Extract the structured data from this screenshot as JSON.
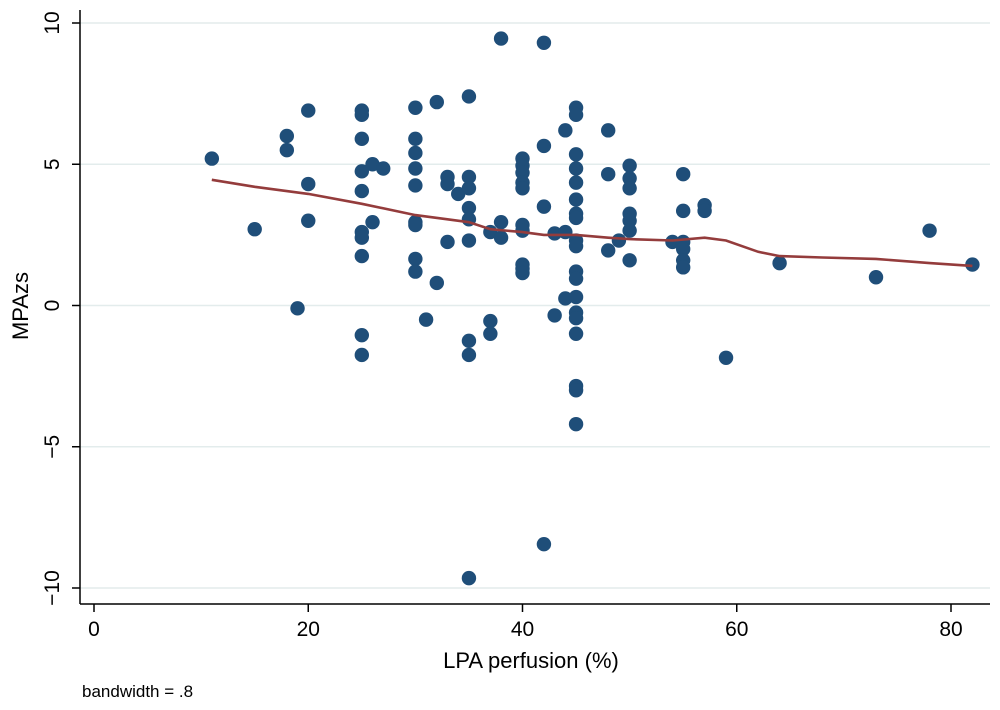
{
  "chart_data": {
    "type": "scatter",
    "title": "",
    "xlabel": "LPA perfusion (%)",
    "ylabel": "MPAzs",
    "xlim": [
      0,
      83
    ],
    "ylim": [
      -10.5,
      10
    ],
    "xticks": [
      0,
      20,
      40,
      60,
      80
    ],
    "yticks": [
      -10,
      -5,
      0,
      5,
      10
    ],
    "ytick_labels": [
      "−10",
      "−5",
      "0",
      "5",
      "10"
    ],
    "grid": "horizontal",
    "colors": {
      "points": "#1f4e79",
      "line": "#943c3c",
      "grid": "#e3ecec"
    },
    "points": [
      [
        11,
        5.2
      ],
      [
        15,
        2.7
      ],
      [
        18,
        6.0
      ],
      [
        18,
        5.5
      ],
      [
        19,
        -0.1
      ],
      [
        20,
        6.9
      ],
      [
        20,
        4.3
      ],
      [
        20,
        3.0
      ],
      [
        25,
        6.9
      ],
      [
        25,
        6.75
      ],
      [
        25,
        5.9
      ],
      [
        25,
        4.75
      ],
      [
        25,
        4.05
      ],
      [
        25,
        2.6
      ],
      [
        25,
        2.4
      ],
      [
        25,
        1.75
      ],
      [
        25,
        -1.05
      ],
      [
        25,
        -1.75
      ],
      [
        26,
        5.0
      ],
      [
        26,
        2.95
      ],
      [
        27,
        4.85
      ],
      [
        30,
        7.0
      ],
      [
        30,
        5.9
      ],
      [
        30,
        5.4
      ],
      [
        30,
        4.85
      ],
      [
        30,
        4.25
      ],
      [
        30,
        2.95
      ],
      [
        30,
        2.85
      ],
      [
        30,
        1.65
      ],
      [
        30,
        1.2
      ],
      [
        31,
        -0.5
      ],
      [
        32,
        7.2
      ],
      [
        32,
        0.8
      ],
      [
        33,
        4.55
      ],
      [
        33,
        4.3
      ],
      [
        33,
        2.25
      ],
      [
        34,
        3.95
      ],
      [
        35,
        7.4
      ],
      [
        35,
        4.55
      ],
      [
        35,
        4.15
      ],
      [
        35,
        3.45
      ],
      [
        35,
        3.05
      ],
      [
        35,
        2.3
      ],
      [
        35,
        -1.25
      ],
      [
        35,
        -1.75
      ],
      [
        35,
        -9.65
      ],
      [
        37,
        2.6
      ],
      [
        37,
        -0.55
      ],
      [
        37,
        -1.0
      ],
      [
        38,
        9.45
      ],
      [
        38,
        2.95
      ],
      [
        38,
        2.4
      ],
      [
        40,
        5.2
      ],
      [
        40,
        4.95
      ],
      [
        40,
        4.7
      ],
      [
        40,
        4.35
      ],
      [
        40,
        4.15
      ],
      [
        40,
        2.85
      ],
      [
        40,
        2.65
      ],
      [
        40,
        1.45
      ],
      [
        40,
        1.3
      ],
      [
        40,
        1.15
      ],
      [
        42,
        9.3
      ],
      [
        42,
        5.65
      ],
      [
        42,
        3.5
      ],
      [
        42,
        -8.45
      ],
      [
        43,
        2.55
      ],
      [
        43,
        -0.35
      ],
      [
        44,
        6.2
      ],
      [
        44,
        2.6
      ],
      [
        44,
        0.25
      ],
      [
        45,
        7.0
      ],
      [
        45,
        6.75
      ],
      [
        45,
        5.35
      ],
      [
        45,
        4.85
      ],
      [
        45,
        4.35
      ],
      [
        45,
        3.75
      ],
      [
        45,
        3.25
      ],
      [
        45,
        3.1
      ],
      [
        45,
        2.3
      ],
      [
        45,
        2.1
      ],
      [
        45,
        1.2
      ],
      [
        45,
        0.95
      ],
      [
        45,
        0.3
      ],
      [
        45,
        -0.25
      ],
      [
        45,
        -0.45
      ],
      [
        45,
        -1.0
      ],
      [
        45,
        -2.85
      ],
      [
        45,
        -3.0
      ],
      [
        45,
        -4.2
      ],
      [
        48,
        6.2
      ],
      [
        48,
        4.65
      ],
      [
        48,
        1.95
      ],
      [
        49,
        2.3
      ],
      [
        50,
        4.95
      ],
      [
        50,
        4.5
      ],
      [
        50,
        4.15
      ],
      [
        50,
        3.25
      ],
      [
        50,
        3.0
      ],
      [
        50,
        2.65
      ],
      [
        50,
        1.6
      ],
      [
        54,
        2.25
      ],
      [
        55,
        4.65
      ],
      [
        55,
        3.35
      ],
      [
        55,
        2.25
      ],
      [
        55,
        2.0
      ],
      [
        55,
        1.6
      ],
      [
        55,
        1.35
      ],
      [
        57,
        3.55
      ],
      [
        57,
        3.35
      ],
      [
        59,
        -1.85
      ],
      [
        64,
        1.5
      ],
      [
        73,
        1.0
      ],
      [
        78,
        2.65
      ],
      [
        82,
        1.45
      ]
    ],
    "lowess": [
      [
        11,
        4.45
      ],
      [
        15,
        4.2
      ],
      [
        20,
        3.95
      ],
      [
        25,
        3.6
      ],
      [
        30,
        3.2
      ],
      [
        33,
        3.05
      ],
      [
        35,
        2.95
      ],
      [
        37,
        2.7
      ],
      [
        40,
        2.6
      ],
      [
        42,
        2.5
      ],
      [
        45,
        2.5
      ],
      [
        48,
        2.4
      ],
      [
        50,
        2.35
      ],
      [
        54,
        2.3
      ],
      [
        57,
        2.4
      ],
      [
        59,
        2.3
      ],
      [
        62,
        1.9
      ],
      [
        64,
        1.75
      ],
      [
        68,
        1.7
      ],
      [
        73,
        1.65
      ],
      [
        78,
        1.5
      ],
      [
        82,
        1.4
      ]
    ],
    "annotation": "bandwidth = .8"
  }
}
